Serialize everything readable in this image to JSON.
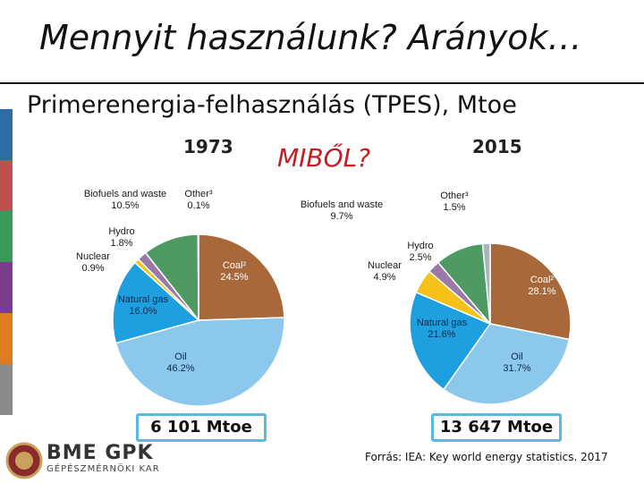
{
  "slide": {
    "title": "Mennyit használunk? Arányok…",
    "subtitle": "Primerenergia-felhasználás (TPES), Mtoe",
    "question": "MIBŐL?",
    "source": "Forrás: IEA: Key world energy statistics. 2017",
    "logo": {
      "name": "BME",
      "name2": "GPK",
      "faculty": "GÉPÉSZMÉRNÖKI KAR"
    },
    "stripe_colors": [
      "#2e6da4",
      "#c0504d",
      "#3a9a5a",
      "#7a3c8c",
      "#e07b20",
      "#8a8a8a"
    ]
  },
  "chart_data": [
    {
      "type": "pie",
      "title": "1973",
      "total_label": "6 101 Mtoe",
      "slices": [
        {
          "name": "Coal²",
          "value": 24.5,
          "label": "24.5%",
          "color": "#a8683a"
        },
        {
          "name": "Oil",
          "value": 46.2,
          "label": "46.2%",
          "color": "#8cc8ec"
        },
        {
          "name": "Natural gas",
          "value": 16.0,
          "label": "16.0%",
          "color": "#1ea0e0"
        },
        {
          "name": "Nuclear",
          "value": 0.9,
          "label": "0.9%",
          "color": "#f6c21a"
        },
        {
          "name": "Hydro",
          "value": 1.8,
          "label": "1.8%",
          "color": "#9a78a8"
        },
        {
          "name": "Biofuels and waste",
          "value": 10.5,
          "label": "10.5%",
          "color": "#4f9a62"
        },
        {
          "name": "Other³",
          "value": 0.1,
          "label": "0.1%",
          "color": "#a9b4b8"
        }
      ]
    },
    {
      "type": "pie",
      "title": "2015",
      "total_label": "13 647 Mtoe",
      "slices": [
        {
          "name": "Coal²",
          "value": 28.1,
          "label": "28.1%",
          "color": "#a8683a"
        },
        {
          "name": "Oil",
          "value": 31.7,
          "label": "31.7%",
          "color": "#8cc8ec"
        },
        {
          "name": "Natural gas",
          "value": 21.6,
          "label": "21.6%",
          "color": "#1ea0e0"
        },
        {
          "name": "Nuclear",
          "value": 4.9,
          "label": "4.9%",
          "color": "#f6c21a"
        },
        {
          "name": "Hydro",
          "value": 2.5,
          "label": "2.5%",
          "color": "#9a78a8"
        },
        {
          "name": "Biofuels and waste",
          "value": 9.7,
          "label": "9.7%",
          "color": "#4f9a62"
        },
        {
          "name": "Other³",
          "value": 1.5,
          "label": "1.5%",
          "color": "#a9b4b8"
        }
      ]
    }
  ]
}
